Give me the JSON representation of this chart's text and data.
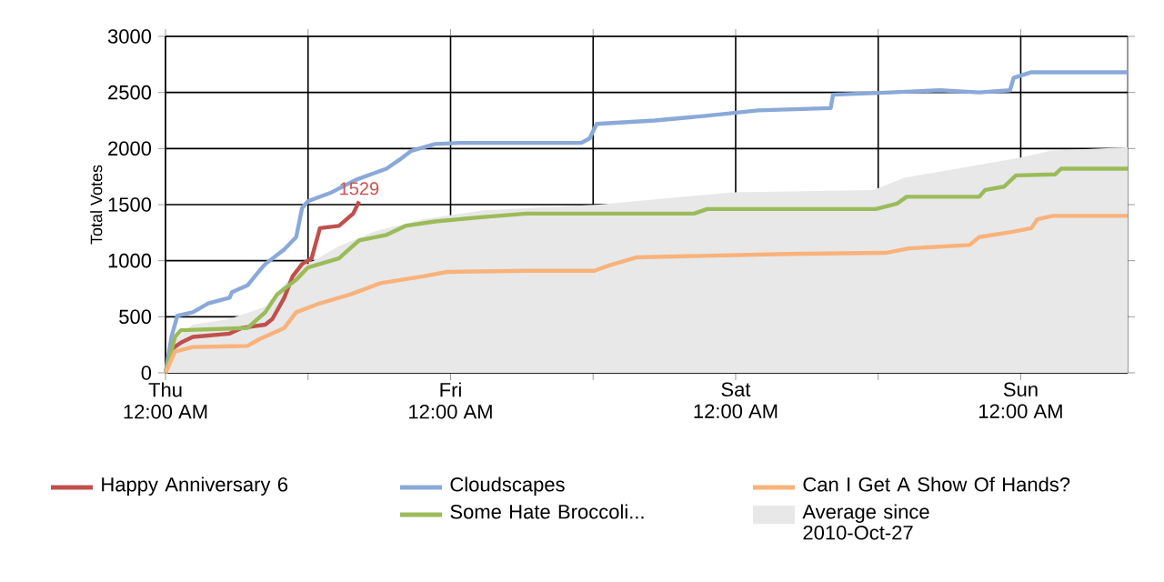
{
  "chart_data": {
    "type": "line",
    "ylabel": "Total Votes",
    "xlim": [
      "2010-10-28T00:00",
      "2010-10-31T09:00"
    ],
    "ylim": [
      0,
      3000
    ],
    "xticks": [
      {
        "value": "2010-10-28T00:00",
        "label": "Thu 12:00 AM"
      },
      {
        "value": "2010-10-28T12:00",
        "label": null
      },
      {
        "value": "2010-10-29T00:00",
        "label": "Fri 12:00 AM"
      },
      {
        "value": "2010-10-29T12:00",
        "label": null
      },
      {
        "value": "2010-10-30T00:00",
        "label": "Sat 12:00 AM"
      },
      {
        "value": "2010-10-30T12:00",
        "label": null
      },
      {
        "value": "2010-10-31T00:00",
        "label": "Sun 12:00 AM"
      }
    ],
    "yticks": [
      0,
      500,
      1000,
      1500,
      2000,
      2500,
      3000
    ],
    "grid": true,
    "legend": "bottom",
    "annotations": [
      {
        "text": "1529",
        "x": "2010-10-28T16:18",
        "y": 1529
      }
    ],
    "series": [
      {
        "name": "Happy Anniversary 6",
        "color": "#c0504d",
        "x": [
          "2010-10-28T00:00",
          "2010-10-28T00:30",
          "2010-10-28T01:18",
          "2010-10-28T02:18",
          "2010-10-28T05:24",
          "2010-10-28T06:24",
          "2010-10-28T08:24",
          "2010-10-28T09:00",
          "2010-10-28T10:00",
          "2010-10-28T10:42",
          "2010-10-28T11:30",
          "2010-10-28T12:18",
          "2010-10-28T13:00",
          "2010-10-28T14:36",
          "2010-10-28T15:48",
          "2010-10-28T16:18"
        ],
        "values": [
          0,
          210,
          270,
          320,
          350,
          400,
          430,
          480,
          670,
          860,
          970,
          1020,
          1290,
          1310,
          1420,
          1529
        ]
      },
      {
        "name": "Cloudscapes",
        "color": "#8aa9d9",
        "x": [
          "2010-10-28T00:00",
          "2010-10-28T00:30",
          "2010-10-28T01:00",
          "2010-10-28T02:18",
          "2010-10-28T03:36",
          "2010-10-28T05:24",
          "2010-10-28T05:36",
          "2010-10-28T06:54",
          "2010-10-28T07:54",
          "2010-10-28T08:24",
          "2010-10-28T10:00",
          "2010-10-28T11:00",
          "2010-10-28T11:30",
          "2010-10-28T12:00",
          "2010-10-28T14:00",
          "2010-10-28T16:00",
          "2010-10-28T18:36",
          "2010-10-28T19:42",
          "2010-10-28T20:42",
          "2010-10-28T22:42",
          "2010-10-29T00:48",
          "2010-10-29T11:00",
          "2010-10-29T11:42",
          "2010-10-29T12:18",
          "2010-10-29T17:12",
          "2010-10-29T21:18",
          "2010-10-30T01:54",
          "2010-10-30T08:00",
          "2010-10-30T08:12",
          "2010-10-30T13:06",
          "2010-10-30T17:12",
          "2010-10-30T20:30",
          "2010-10-30T23:06",
          "2010-10-30T23:24",
          "2010-10-31T00:54",
          "2010-10-31T09:00"
        ],
        "values": [
          0,
          320,
          510,
          540,
          620,
          670,
          720,
          780,
          910,
          970,
          1100,
          1210,
          1470,
          1530,
          1610,
          1720,
          1820,
          1900,
          1980,
          2040,
          2050,
          2050,
          2090,
          2220,
          2250,
          2290,
          2340,
          2360,
          2480,
          2500,
          2520,
          2500,
          2520,
          2630,
          2680,
          2680
        ]
      },
      {
        "name": "Some Hate Broccoli...",
        "color": "#9bbb59",
        "x": [
          "2010-10-28T00:00",
          "2010-10-28T00:48",
          "2010-10-28T01:18",
          "2010-10-28T06:54",
          "2010-10-28T08:24",
          "2010-10-28T09:24",
          "2010-10-28T11:00",
          "2010-10-28T12:00",
          "2010-10-28T14:36",
          "2010-10-28T16:18",
          "2010-10-28T18:36",
          "2010-10-28T20:12",
          "2010-10-28T22:42",
          "2010-10-29T02:48",
          "2010-10-29T06:24",
          "2010-10-29T20:30",
          "2010-10-29T21:36",
          "2010-10-30T11:48",
          "2010-10-30T13:36",
          "2010-10-30T14:24",
          "2010-10-30T20:30",
          "2010-10-30T21:00",
          "2010-10-30T22:36",
          "2010-10-30T23:36",
          "2010-10-31T02:54",
          "2010-10-31T03:24",
          "2010-10-31T09:00"
        ],
        "values": [
          0,
          320,
          380,
          400,
          540,
          700,
          830,
          940,
          1020,
          1180,
          1230,
          1310,
          1350,
          1390,
          1420,
          1420,
          1460,
          1460,
          1510,
          1570,
          1570,
          1630,
          1660,
          1760,
          1770,
          1820,
          1820
        ]
      },
      {
        "name": "Can I Get A Show Of Hands?",
        "color": "#f9b27a",
        "x": [
          "2010-10-28T00:00",
          "2010-10-28T00:48",
          "2010-10-28T02:18",
          "2010-10-28T06:54",
          "2010-10-28T07:54",
          "2010-10-28T10:00",
          "2010-10-28T11:00",
          "2010-10-28T13:00",
          "2010-10-28T15:36",
          "2010-10-28T18:06",
          "2010-10-28T21:42",
          "2010-10-28T23:42",
          "2010-10-29T06:24",
          "2010-10-29T12:06",
          "2010-10-29T13:24",
          "2010-10-29T15:42",
          "2010-10-30T04:24",
          "2010-10-30T12:36",
          "2010-10-30T14:36",
          "2010-10-30T19:42",
          "2010-10-30T20:30",
          "2010-10-30T23:24",
          "2010-10-31T00:54",
          "2010-10-31T01:24",
          "2010-10-31T02:42",
          "2010-10-31T09:00"
        ],
        "values": [
          0,
          190,
          230,
          240,
          300,
          400,
          540,
          620,
          700,
          800,
          860,
          900,
          910,
          910,
          960,
          1030,
          1060,
          1070,
          1110,
          1140,
          1210,
          1260,
          1290,
          1370,
          1400,
          1400
        ]
      },
      {
        "name": "Average since 2010-Oct-27",
        "type": "area",
        "color": "#e8e8e8",
        "x": [
          "2010-10-28T00:00",
          "2010-10-28T00:30",
          "2010-10-28T02:18",
          "2010-10-28T05:24",
          "2010-10-28T08:24",
          "2010-10-28T11:00",
          "2010-10-28T14:36",
          "2010-10-28T17:36",
          "2010-10-28T21:42",
          "2010-10-29T02:48",
          "2010-10-29T12:30",
          "2010-10-29T23:48",
          "2010-10-30T11:36",
          "2010-10-30T14:12",
          "2010-10-31T00:00",
          "2010-10-31T02:30",
          "2010-10-31T09:00"
        ],
        "values": [
          0,
          270,
          430,
          480,
          590,
          910,
          1130,
          1260,
          1370,
          1450,
          1500,
          1610,
          1630,
          1740,
          1920,
          1980,
          2010
        ]
      }
    ]
  }
}
